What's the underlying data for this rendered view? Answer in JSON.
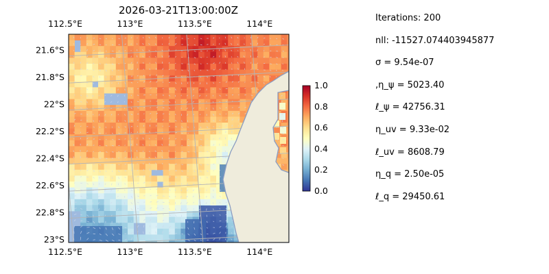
{
  "chart_data": {
    "type": "heatmap",
    "title": "2026-03-21T13:00:00Z",
    "x_ticks": [
      "112.5°E",
      "113°E",
      "113.5°E",
      "114°E"
    ],
    "x_tick_values": [
      112.5,
      113.0,
      113.5,
      114.0
    ],
    "y_ticks": [
      "21.6°S",
      "21.8°S",
      "22°S",
      "22.2°S",
      "22.4°S",
      "22.6°S",
      "22.8°S",
      "23°S"
    ],
    "y_tick_values": [
      -21.6,
      -21.8,
      -22.0,
      -22.2,
      -22.4,
      -22.6,
      -22.8,
      -23.0
    ],
    "xlim": [
      112.5,
      114.2
    ],
    "ylim": [
      -23.02,
      -21.48
    ],
    "colorbar": {
      "min": 0.0,
      "max": 1.0,
      "ticks": [
        "0.0",
        "0.2",
        "0.4",
        "0.6",
        "0.8",
        "1.0"
      ],
      "colormap": "RdYlBu_r"
    },
    "grid": true,
    "colors": {
      "land": "#efecdc",
      "coast": "#8a9cc2",
      "ocean_mask": "#9fbadf",
      "grid": "#b4b4b4",
      "arrow": "#cfd8ec"
    }
  },
  "stats": [
    "Iterations: 200",
    "nll: -11527.074403945877",
    "σ = 9.54e-07",
    ",η_ψ = 5023.40",
    "ℓ_ψ = 42756.31",
    "η_uv = 9.33e-02",
    "ℓ_uv = 8608.79",
    "η_q = 2.50e-05",
    "ℓ_q = 29450.61"
  ]
}
